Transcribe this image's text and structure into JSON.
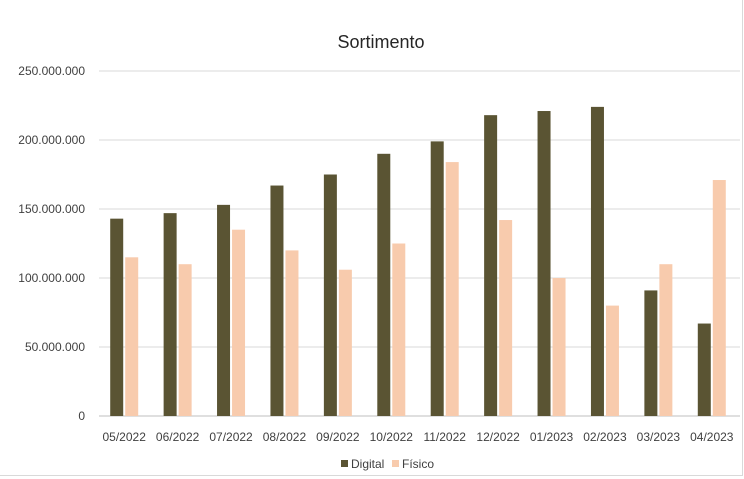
{
  "chart_data": {
    "type": "bar",
    "title": "Sortimento",
    "xlabel": "",
    "ylabel": "",
    "categories": [
      "05/2022",
      "06/2022",
      "07/2022",
      "08/2022",
      "09/2022",
      "10/2022",
      "11/2022",
      "12/2022",
      "01/2023",
      "02/2023",
      "03/2023",
      "04/2023"
    ],
    "series": [
      {
        "name": "Digital",
        "color": "#5a5433",
        "values": [
          143000000,
          147000000,
          153000000,
          167000000,
          175000000,
          190000000,
          199000000,
          218000000,
          221000000,
          224000000,
          91000000,
          67000000
        ]
      },
      {
        "name": "Físico",
        "color": "#f8cbad",
        "values": [
          115000000,
          110000000,
          135000000,
          120000000,
          106000000,
          125000000,
          184000000,
          142000000,
          100000000,
          80000000,
          110000000,
          171000000
        ]
      }
    ],
    "ylim": [
      0,
      250000000
    ],
    "yticks": [
      0,
      50000000,
      100000000,
      150000000,
      200000000,
      250000000
    ],
    "ytick_labels": [
      "0",
      "50.000.000",
      "100.000.000",
      "150.000.000",
      "200.000.000",
      "250.000.000"
    ],
    "grid": true,
    "legend": "bottom"
  }
}
